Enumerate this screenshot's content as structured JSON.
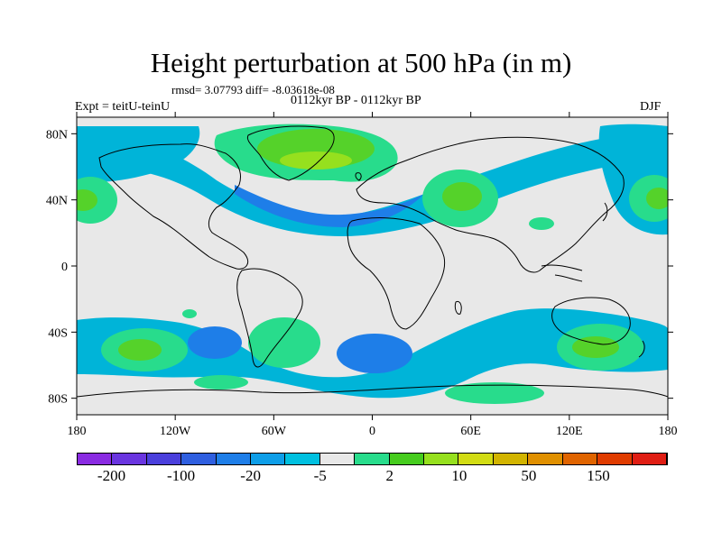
{
  "title": "Height perturbation at 500 hPa (in m)",
  "stats": "rmsd= 3.07793 diff= -8.03618e-08",
  "left_label": "Expt = teitU-teinU",
  "center_label": "0112kyr BP - 0112kyr BP",
  "right_label": "DJF",
  "map": {
    "lat_ticks": [
      "80N",
      "40N",
      "0",
      "40S",
      "80S"
    ],
    "lon_ticks": [
      "180",
      "120W",
      "60W",
      "0",
      "60E",
      "120E",
      "180"
    ],
    "lat_tick_values": [
      80,
      40,
      0,
      -40,
      -80
    ],
    "lon_tick_values": [
      -180,
      -120,
      -60,
      0,
      60,
      120,
      180
    ],
    "lat_range": [
      -90,
      90
    ],
    "lon_range": [
      -180,
      180
    ],
    "background_color": "#e8e8e8",
    "contour_fields": [
      {
        "region": "Greenland high",
        "level": 10,
        "color": "#55d22a"
      },
      {
        "region": "Mediterranean high",
        "level": 10,
        "color": "#55d22a"
      },
      {
        "region": "North Pacific high",
        "level": 10,
        "color": "#55d22a"
      },
      {
        "region": "North Atlantic low",
        "level": -5,
        "color": "#00b4d8"
      },
      {
        "region": "South Atlantic low",
        "level": -5,
        "color": "#00b4d8"
      },
      {
        "region": "South Pacific low",
        "level": -5,
        "color": "#00b4d8"
      },
      {
        "region": "South Pacific high",
        "level": 10,
        "color": "#55d22a"
      },
      {
        "region": "Southern Australia high",
        "level": 10,
        "color": "#55d22a"
      }
    ]
  },
  "colorbar": {
    "colors": [
      "#8a2be2",
      "#6a35e0",
      "#4a3fdc",
      "#2f5fe0",
      "#1e7ee8",
      "#0e9ee8",
      "#00c0e0",
      "#e8e8e8",
      "#28dc8c",
      "#46cc1e",
      "#96e01e",
      "#d2dc14",
      "#d2b400",
      "#e09000",
      "#e06400",
      "#e03c00",
      "#e01e14"
    ],
    "labels": [
      "-200",
      "-100",
      "-20",
      "-5",
      "2",
      "10",
      "50",
      "150"
    ]
  }
}
